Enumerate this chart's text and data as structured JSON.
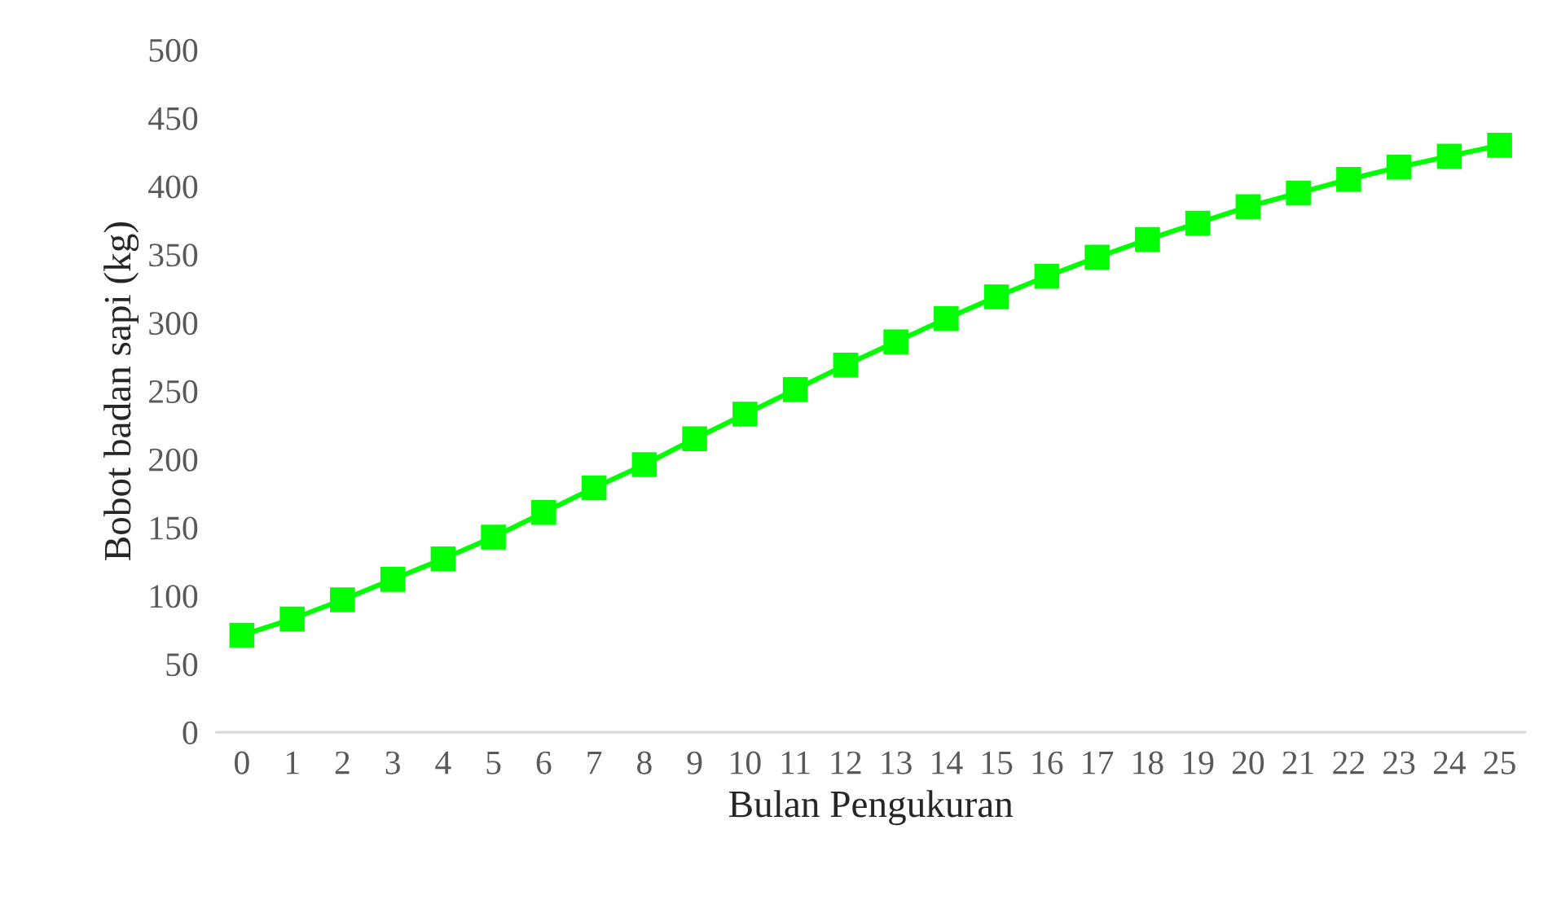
{
  "chart_data": {
    "type": "line",
    "xlabel": "Bulan Pengukuran",
    "ylabel": "Bobot badan sapi (kg)",
    "categories": [
      "0",
      "1",
      "2",
      "3",
      "4",
      "5",
      "6",
      "7",
      "8",
      "9",
      "10",
      "11",
      "12",
      "13",
      "14",
      "15",
      "16",
      "17",
      "18",
      "19",
      "20",
      "21",
      "22",
      "23",
      "24",
      "25"
    ],
    "series": [
      {
        "color": "#00ff00",
        "values": [
          71,
          83,
          97,
          112,
          127,
          143,
          161,
          179,
          196,
          215,
          233,
          251,
          269,
          286,
          303,
          319,
          334,
          348,
          361,
          373,
          385,
          395,
          405,
          414,
          422,
          430
        ]
      }
    ],
    "ylim": [
      0,
      500
    ],
    "yticks": [
      0,
      50,
      100,
      150,
      200,
      250,
      300,
      350,
      400,
      450,
      500
    ],
    "marker": "square",
    "line_style": "solid",
    "grid": false,
    "legend": false
  }
}
